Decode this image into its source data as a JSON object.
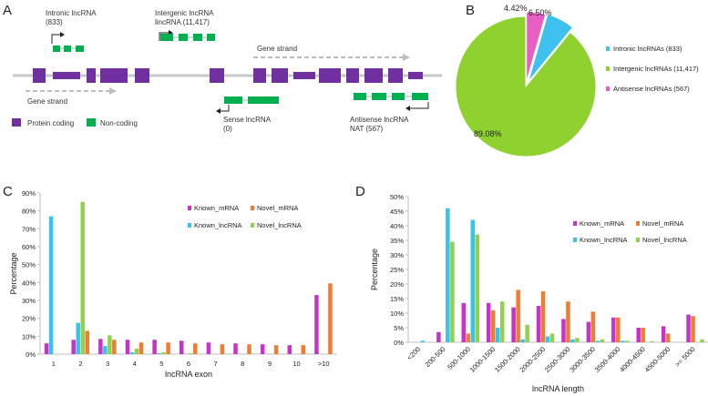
{
  "panel_labels": [
    "A",
    "B",
    "C",
    "D"
  ],
  "schematic": {
    "intronic_label": "Intronic lncRNA",
    "intronic_count": "(833)",
    "intergenic_label": "Intergenic lncRNA",
    "intergenic_count": "lincRNA (11,417)",
    "gene_strand_top": "Gene strand",
    "gene_strand_bottom": "Gene strand",
    "sense_label": "Sense lncRNA",
    "sense_count": "(0)",
    "antisense_label": "Antisense lncRNA",
    "antisense_count": "NAT (567)",
    "legend_protein": "Protein coding",
    "legend_noncoding": "Non-coding",
    "colors": {
      "protein": "#7030a0",
      "noncoding": "#00b050",
      "line": "#c8c8c8"
    }
  },
  "chart_data": [
    {
      "id": "B",
      "type": "pie",
      "labels": [
        "Intronic lncRNAs (833)",
        "Intergenic lncRNAs (11,417)",
        "Antisense lncRNAs (567)"
      ],
      "values": [
        6.5,
        89.08,
        4.42
      ],
      "slice_labels": [
        "6.50%",
        "89.08%",
        "4.42%"
      ],
      "colors": [
        "#3fc1f0",
        "#8fd12f",
        "#e85fc2"
      ],
      "legend": "right"
    },
    {
      "id": "C",
      "type": "bar",
      "xlabel": "lncRNA exon",
      "ylabel": "Percentage",
      "ylim": [
        0,
        90
      ],
      "yticks": [
        "0%",
        "10%",
        "20%",
        "30%",
        "40%",
        "50%",
        "60%",
        "70%",
        "80%",
        "90%"
      ],
      "categories": [
        "1",
        "2",
        "3",
        "4",
        "5",
        "6",
        "7",
        "8",
        "9",
        "10",
        ">10"
      ],
      "series": [
        {
          "name": "Known_mRNA",
          "color": "#c832c8",
          "values": [
            6,
            8,
            8.5,
            8,
            8,
            7.5,
            6.5,
            6,
            5.5,
            5,
            33
          ]
        },
        {
          "name": "Known_lncRNA",
          "color": "#38c3ea",
          "values": [
            77,
            17.5,
            4.5,
            1,
            0.5,
            0,
            0,
            0,
            0,
            0,
            0
          ]
        },
        {
          "name": "Novel_lncRNA",
          "color": "#92d050",
          "values": [
            0,
            85,
            10.5,
            3,
            1,
            0.5,
            0,
            0,
            0,
            0,
            0
          ]
        },
        {
          "name": "Novel_mRNA",
          "color": "#ef7d31",
          "values": [
            0,
            13,
            8,
            6.5,
            6.5,
            6,
            5.5,
            5.5,
            5,
            5,
            39.5
          ]
        }
      ],
      "legend": "top-right"
    },
    {
      "id": "D",
      "type": "bar",
      "xlabel": "lncRNA length",
      "ylabel": "Percentage",
      "ylim": [
        0,
        50
      ],
      "yticks": [
        "0%",
        "5%",
        "10%",
        "15%",
        "20%",
        "25%",
        "30%",
        "35%",
        "40%",
        "45%",
        "50%"
      ],
      "categories": [
        "<200",
        "200-500",
        "500-1000",
        "1000-1500",
        "1500-2000",
        "2000-2500",
        "2500-3000",
        "3000-3500",
        "3500-4000",
        "4000-4500",
        "4500-5000",
        ">= 5000"
      ],
      "series": [
        {
          "name": "Known_mRNA",
          "color": "#c832c8",
          "values": [
            0,
            3.5,
            13.5,
            13.5,
            12,
            12.5,
            8,
            7,
            8.5,
            5,
            5.5,
            9.5
          ]
        },
        {
          "name": "Known_lncRNA",
          "color": "#38c3ea",
          "values": [
            0.5,
            46,
            42,
            5,
            1,
            2,
            1,
            0.5,
            0.5,
            0,
            0,
            0
          ]
        },
        {
          "name": "Novel_lncRNA",
          "color": "#92d050",
          "values": [
            0,
            34.5,
            37,
            14,
            6,
            3,
            1.5,
            1,
            0.5,
            0.3,
            0,
            1
          ]
        },
        {
          "name": "Novel_mRNA",
          "color": "#ef7d31",
          "values": [
            0,
            0,
            3,
            11,
            18,
            17.5,
            14,
            10.5,
            8.5,
            5,
            3,
            9
          ]
        }
      ],
      "legend": "top-right"
    }
  ]
}
